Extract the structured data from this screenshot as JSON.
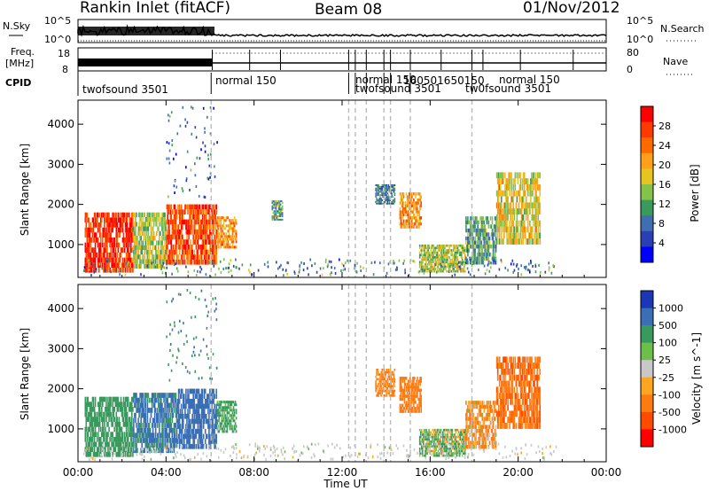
{
  "header": {
    "station": "Rankin Inlet (fitACF)",
    "beam": "Beam 08",
    "date": "01/Nov/2012"
  },
  "strip_labels": {
    "nsky": "N.Sky",
    "nsky_hi": "10^5",
    "nsky_lo": "10^0",
    "nsearch": "N.Search",
    "nsearch_hi": "10^5",
    "nsearch_lo": "10^0",
    "freq_1": "Freq.",
    "freq_2": "[MHz]",
    "freq_hi": "18",
    "freq_lo": "8",
    "nave": "Nave",
    "nave_hi": "80",
    "nave_lo": "0",
    "cpid": "CPID"
  },
  "cpid_labels": {
    "first": "twofsound 3501",
    "second": "normal 150",
    "cluster_a": "normal 150",
    "cluster_b": "twofsound 3501",
    "cluster_c": "160501650150",
    "late_a": "normal 150",
    "late_b": "tw0fsound 3501"
  },
  "x_axis": {
    "label": "Time UT",
    "ticks": [
      "00:00",
      "04:00",
      "08:00",
      "12:00",
      "16:00",
      "20:00",
      "00:00"
    ]
  },
  "panels": {
    "power": {
      "ylabel": "Slant Range [km]",
      "yticks": [
        "1000",
        "2000",
        "3000",
        "4000"
      ],
      "cbar_label": "Power [dB]",
      "cbar_ticks": [
        "28",
        "24",
        "20",
        "16",
        "12",
        "8",
        "4"
      ],
      "cbar_colors": [
        "#ff0000",
        "#ff3a00",
        "#ff6a00",
        "#ff9f1a",
        "#e7c41f",
        "#85c24a",
        "#3a9a5e",
        "#3f6fb0",
        "#2b3fb5",
        "#0000ff"
      ]
    },
    "velocity": {
      "ylabel": "Slant Range [km]",
      "yticks": [
        "1000",
        "2000",
        "3000",
        "4000"
      ],
      "cbar_label": "Velocity [m s^-1]",
      "cbar_ticks": [
        "1000",
        "500",
        "100",
        "25",
        "-25",
        "-100",
        "-500",
        "-1000"
      ],
      "cbar_colors": [
        "#1c36b8",
        "#3a6fb5",
        "#3a9a5e",
        "#6cc04a",
        "#c8c8c8",
        "#ffa51f",
        "#ff7a10",
        "#ff4a00",
        "#ff0000"
      ]
    }
  },
  "chart_data": [
    {
      "type": "heatmap",
      "title": "Power",
      "xlabel": "Time UT",
      "ylabel": "Slant Range [km]",
      "xlim_hours": [
        0,
        24
      ],
      "ylim_km": [
        180,
        4600
      ],
      "colorbar": {
        "label": "Power [dB]",
        "range": [
          0,
          30
        ],
        "ticks": [
          4,
          8,
          12,
          16,
          20,
          24,
          28
        ]
      },
      "echo_regions": [
        {
          "t": [
            0.3,
            2.5
          ],
          "r": [
            300,
            1800
          ],
          "value_db": 28
        },
        {
          "t": [
            2.5,
            4.0
          ],
          "r": [
            400,
            1800
          ],
          "value_db": 16
        },
        {
          "t": [
            4.0,
            6.3
          ],
          "r": [
            500,
            2000
          ],
          "value_db": 26
        },
        {
          "t": [
            6.3,
            7.2
          ],
          "r": [
            900,
            1700
          ],
          "value_db": 22
        },
        {
          "t": [
            8.8,
            9.3
          ],
          "r": [
            1600,
            2100
          ],
          "value_db": 12
        },
        {
          "t": [
            13.5,
            14.4
          ],
          "r": [
            2000,
            2500
          ],
          "value_db": 10
        },
        {
          "t": [
            14.6,
            15.6
          ],
          "r": [
            1400,
            2300
          ],
          "value_db": 22
        },
        {
          "t": [
            15.5,
            17.6
          ],
          "r": [
            300,
            1000
          ],
          "value_db": 16
        },
        {
          "t": [
            17.6,
            19.0
          ],
          "r": [
            500,
            1700
          ],
          "value_db": 12
        },
        {
          "t": [
            19.0,
            21.0
          ],
          "r": [
            1000,
            2800
          ],
          "value_db": 18
        }
      ]
    },
    {
      "type": "heatmap",
      "title": "Velocity",
      "xlabel": "Time UT",
      "ylabel": "Slant Range [km]",
      "xlim_hours": [
        0,
        24
      ],
      "ylim_km": [
        180,
        4600
      ],
      "colorbar": {
        "label": "Velocity [m s^-1]",
        "ticks": [
          1000,
          500,
          100,
          25,
          -25,
          -100,
          -500,
          -1000
        ]
      },
      "echo_regions": [
        {
          "t": [
            0.3,
            2.5
          ],
          "r": [
            300,
            1800
          ],
          "value_ms": 300
        },
        {
          "t": [
            2.5,
            4.5
          ],
          "r": [
            400,
            1900
          ],
          "value_ms": 600
        },
        {
          "t": [
            4.5,
            6.3
          ],
          "r": [
            500,
            2000
          ],
          "value_ms": 800
        },
        {
          "t": [
            6.3,
            7.2
          ],
          "r": [
            900,
            1700
          ],
          "value_ms": 200
        },
        {
          "t": [
            13.5,
            14.4
          ],
          "r": [
            1800,
            2500
          ],
          "value_ms": -200
        },
        {
          "t": [
            14.6,
            15.6
          ],
          "r": [
            1400,
            2300
          ],
          "value_ms": -300
        },
        {
          "t": [
            15.5,
            17.6
          ],
          "r": [
            300,
            1000
          ],
          "value_ms": 80
        },
        {
          "t": [
            17.6,
            19.0
          ],
          "r": [
            500,
            1700
          ],
          "value_ms": -150
        },
        {
          "t": [
            19.0,
            21.0
          ],
          "r": [
            1000,
            2800
          ],
          "value_ms": -400
        }
      ]
    }
  ]
}
